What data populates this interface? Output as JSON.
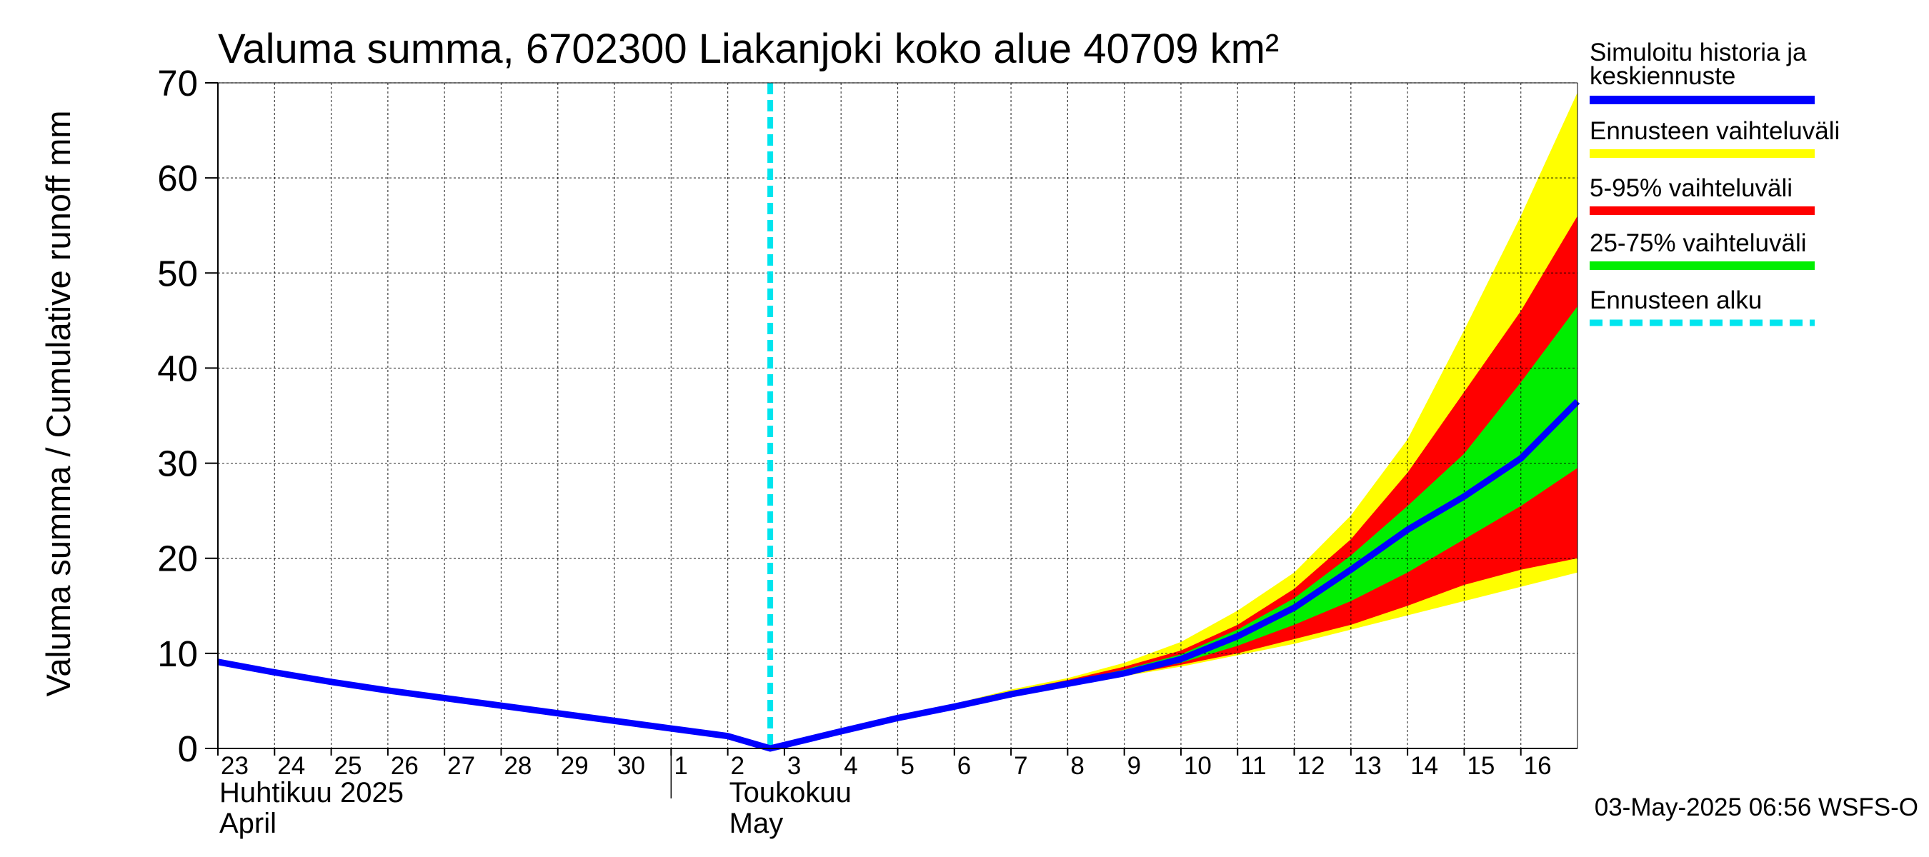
{
  "chart_data": {
    "type": "area",
    "title": "Valuma summa, 6702300 Liakanjoki koko alue 40709 km²",
    "ylabel": "Valuma summa / Cumulative runoff    mm",
    "ylim": [
      0,
      70
    ],
    "yticks": [
      0,
      10,
      20,
      30,
      40,
      50,
      60,
      70
    ],
    "grid": true,
    "x_start": "2025-04-23",
    "x_end": "2025-05-17",
    "day_labels": [
      "23",
      "24",
      "25",
      "26",
      "27",
      "28",
      "29",
      "30",
      "1",
      "2",
      "3",
      "4",
      "5",
      "6",
      "7",
      "8",
      "9",
      "10",
      "11",
      "12",
      "13",
      "14",
      "15",
      "16"
    ],
    "month_labels": [
      {
        "line1": "Huhtikuu  2025",
        "line2": "April",
        "at_day": "2025-04-23"
      },
      {
        "line1": "Toukokuu",
        "line2": "May",
        "at_day": "2025-05-02"
      }
    ],
    "forecast_start": "2025-05-02T18:00",
    "series": [
      {
        "name": "Simuloitu historia ja keskiennuste",
        "color": "#0000ff",
        "points": [
          [
            "2025-04-23T00:00",
            9.1
          ],
          [
            "2025-04-24",
            8.0
          ],
          [
            "2025-04-25",
            7.0
          ],
          [
            "2025-04-26",
            6.1
          ],
          [
            "2025-04-27",
            5.3
          ],
          [
            "2025-04-28",
            4.5
          ],
          [
            "2025-04-29",
            3.7
          ],
          [
            "2025-04-30",
            2.9
          ],
          [
            "2025-05-01",
            2.1
          ],
          [
            "2025-05-02",
            1.3
          ],
          [
            "2025-05-02T18:00",
            0.0
          ],
          [
            "2025-05-04",
            1.8
          ],
          [
            "2025-05-05",
            3.2
          ],
          [
            "2025-05-06",
            4.4
          ],
          [
            "2025-05-07",
            5.7
          ],
          [
            "2025-05-08",
            6.8
          ],
          [
            "2025-05-09",
            7.9
          ],
          [
            "2025-05-10",
            9.4
          ],
          [
            "2025-05-11",
            11.8
          ],
          [
            "2025-05-12",
            14.8
          ],
          [
            "2025-05-13",
            18.8
          ],
          [
            "2025-05-14",
            23.0
          ],
          [
            "2025-05-15",
            26.5
          ],
          [
            "2025-05-16",
            30.5
          ],
          [
            "2025-05-17",
            36.5
          ]
        ]
      }
    ],
    "bands": [
      {
        "name": "Ennusteen vaihteluväli",
        "color": "#ffff00",
        "x": [
          "2025-05-02T18:00",
          "2025-05-04",
          "2025-05-05",
          "2025-05-06",
          "2025-05-07",
          "2025-05-08",
          "2025-05-09",
          "2025-05-10",
          "2025-05-11",
          "2025-05-12",
          "2025-05-13",
          "2025-05-14",
          "2025-05-15",
          "2025-05-16",
          "2025-05-17"
        ],
        "low": [
          0.0,
          1.7,
          3.1,
          4.3,
          5.5,
          6.6,
          7.6,
          8.6,
          9.8,
          11.0,
          12.5,
          14.0,
          15.5,
          17.0,
          18.5
        ],
        "high": [
          0.0,
          1.9,
          3.4,
          4.7,
          6.2,
          7.4,
          9.0,
          11.2,
          14.5,
          18.5,
          24.5,
          32.5,
          44.0,
          56.0,
          69.0
        ]
      },
      {
        "name": "5-95% vaihteluväli",
        "color": "#ff0000",
        "x": [
          "2025-05-02T18:00",
          "2025-05-04",
          "2025-05-05",
          "2025-05-06",
          "2025-05-07",
          "2025-05-08",
          "2025-05-09",
          "2025-05-10",
          "2025-05-11",
          "2025-05-12",
          "2025-05-13",
          "2025-05-14",
          "2025-05-15",
          "2025-05-16",
          "2025-05-17"
        ],
        "low": [
          0.0,
          1.75,
          3.15,
          4.35,
          5.6,
          6.7,
          7.7,
          8.8,
          10.0,
          11.5,
          13.0,
          15.0,
          17.2,
          18.8,
          20.0
        ],
        "high": [
          0.0,
          1.85,
          3.3,
          4.6,
          6.0,
          7.2,
          8.6,
          10.3,
          13.0,
          16.8,
          22.0,
          29.0,
          37.5,
          46.0,
          56.0
        ]
      },
      {
        "name": "25-75% vaihteluväli",
        "color": "#00ee00",
        "x": [
          "2025-05-02T18:00",
          "2025-05-04",
          "2025-05-05",
          "2025-05-06",
          "2025-05-07",
          "2025-05-08",
          "2025-05-09",
          "2025-05-10",
          "2025-05-11",
          "2025-05-12",
          "2025-05-13",
          "2025-05-14",
          "2025-05-15",
          "2025-05-16",
          "2025-05-17"
        ],
        "low": [
          0.0,
          1.78,
          3.18,
          4.38,
          5.65,
          6.75,
          7.8,
          9.0,
          10.8,
          13.0,
          15.5,
          18.5,
          22.0,
          25.5,
          29.5
        ],
        "high": [
          0.0,
          1.82,
          3.25,
          4.5,
          5.85,
          7.0,
          8.3,
          9.9,
          12.5,
          15.8,
          20.3,
          25.5,
          31.0,
          38.5,
          46.5
        ]
      }
    ],
    "legend": [
      {
        "label": "Simuloitu historia ja keskiennuste",
        "color": "#0000ff",
        "style": "solid"
      },
      {
        "label": "Ennusteen vaihteluväli",
        "color": "#ffff00",
        "style": "solid"
      },
      {
        "label": "5-95% vaihteluväli",
        "color": "#ff0000",
        "style": "solid"
      },
      {
        "label": "25-75% vaihteluväli",
        "color": "#00ee00",
        "style": "solid"
      },
      {
        "label": "Ennusteen alku",
        "color": "#00e5ee",
        "style": "dashed"
      }
    ],
    "legend_position": "right"
  },
  "footer": {
    "timestamp": "03-May-2025 06:56 WSFS-O"
  }
}
